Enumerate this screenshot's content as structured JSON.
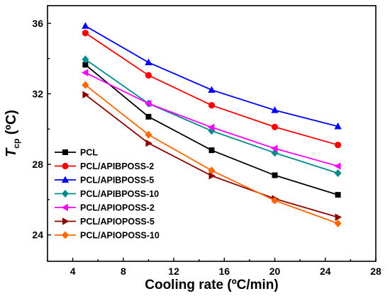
{
  "chart_data": {
    "type": "line",
    "xlabel": "Cooling rate (ºC/min)",
    "ylabel_main": "T",
    "ylabel_sub": "cp",
    "ylabel_unit": " (ºC)",
    "xlim": [
      2,
      28
    ],
    "ylim": [
      22.5,
      37
    ],
    "xticks": [
      4,
      8,
      12,
      16,
      20,
      24,
      28
    ],
    "yticks": [
      24,
      28,
      32,
      36
    ],
    "grid": false,
    "legend_position": "lower-left",
    "x": [
      5,
      10,
      15,
      20,
      25
    ],
    "series": [
      {
        "name": "PCL",
        "color": "#000000",
        "marker": "square",
        "values": [
          33.65,
          30.7,
          28.8,
          27.38,
          26.27
        ]
      },
      {
        "name": "PCL/APIBPOSS-2",
        "color": "#ff0000",
        "marker": "circle",
        "values": [
          35.45,
          33.05,
          31.35,
          30.12,
          29.1
        ]
      },
      {
        "name": "PCL/APIBPOSS-5",
        "color": "#0000ff",
        "marker": "triangle-up",
        "values": [
          35.85,
          33.78,
          32.22,
          31.07,
          30.15
        ]
      },
      {
        "name": "PCL/APIBPOSS-10",
        "color": "#008b8b",
        "marker": "diamond",
        "values": [
          33.95,
          31.45,
          29.9,
          28.65,
          27.5
        ]
      },
      {
        "name": "PCL/APIOPOSS-2",
        "color": "#ff00ff",
        "marker": "triangle-left",
        "values": [
          33.2,
          31.45,
          30.1,
          28.9,
          27.9
        ]
      },
      {
        "name": "PCL/APIOPOSS-5",
        "color": "#8b0000",
        "marker": "triangle-right",
        "values": [
          31.95,
          29.2,
          27.35,
          26.05,
          25.0
        ]
      },
      {
        "name": "PCL/APIOPOSS-10",
        "color": "#ff6600",
        "marker": "diamond",
        "values": [
          32.5,
          29.68,
          27.65,
          25.95,
          24.65
        ]
      }
    ]
  }
}
